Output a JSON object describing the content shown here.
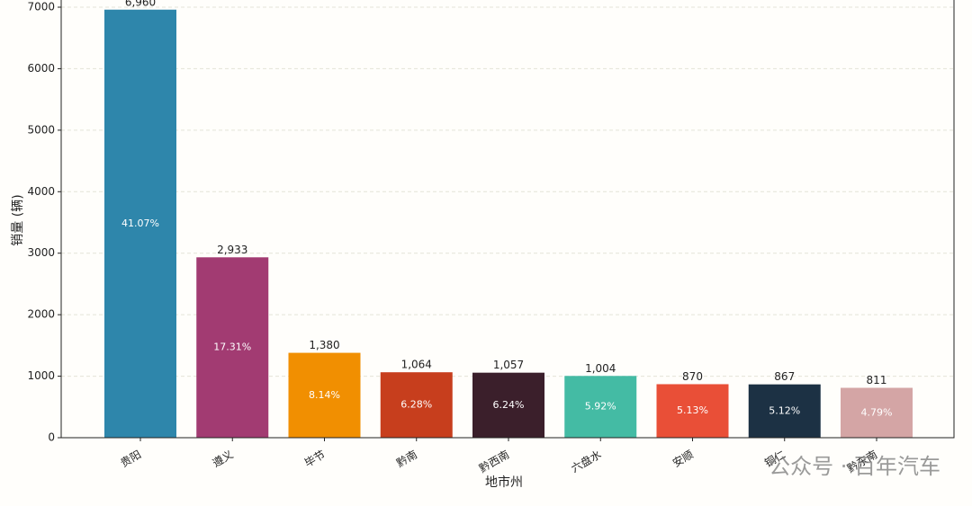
{
  "chart_data": {
    "type": "bar",
    "x_label": "地市州",
    "y_label": "销量 (辆)",
    "categories": [
      "贵阳",
      "遵义",
      "毕节",
      "黔南",
      "黔西南",
      "六盘水",
      "安顺",
      "铜仁",
      "黔东南"
    ],
    "values": [
      6960,
      2933,
      1380,
      1064,
      1057,
      1004,
      870,
      867,
      811
    ],
    "value_labels": [
      "6,960",
      "2,933",
      "1,380",
      "1,064",
      "1,057",
      "1,004",
      "870",
      "867",
      "811"
    ],
    "percent_labels": [
      "41.07%",
      "17.31%",
      "8.14%",
      "6.28%",
      "6.24%",
      "5.92%",
      "5.13%",
      "5.12%",
      "4.79%"
    ],
    "colors": [
      "#2e86ab",
      "#a23b72",
      "#f18f01",
      "#c73e1d",
      "#3b1f2b",
      "#44bba4",
      "#e94f37",
      "#1c3144",
      "#d4a5a5"
    ],
    "ylim": [
      0,
      7000
    ],
    "yticks": [
      0,
      1000,
      2000,
      3000,
      4000,
      5000,
      6000,
      7000
    ],
    "grid": true,
    "watermark": "公众号 · 百年汽车"
  }
}
